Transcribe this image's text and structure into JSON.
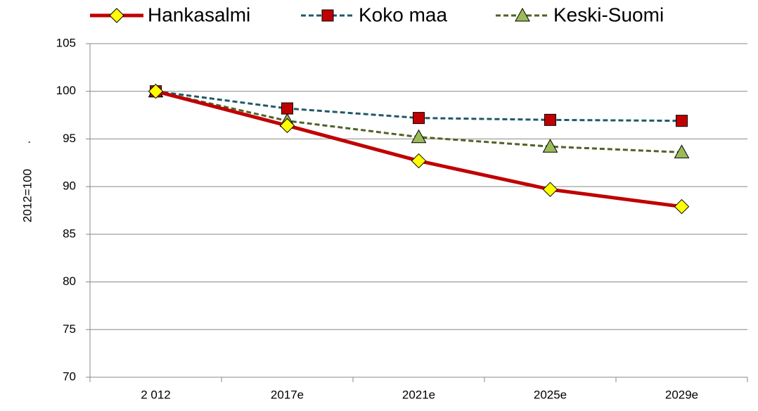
{
  "chart_data": {
    "type": "line",
    "categories": [
      "2 012",
      "2017e",
      "2021e",
      "2025e",
      "2029e"
    ],
    "series": [
      {
        "name": "Hankasalmi",
        "color": "#c00000",
        "marker": "diamond",
        "marker_color": "#ffff00",
        "dash": false,
        "values": [
          100,
          96.4,
          92.7,
          89.7,
          87.9
        ]
      },
      {
        "name": "Koko maa",
        "color": "#215968",
        "marker": "square",
        "marker_color": "#c00000",
        "dash": true,
        "values": [
          100,
          98.2,
          97.2,
          97.0,
          96.9
        ]
      },
      {
        "name": "Keski-Suomi",
        "color": "#4f6228",
        "marker": "triangle",
        "marker_color": "#9bbb59",
        "dash": true,
        "values": [
          100,
          96.9,
          95.2,
          94.2,
          93.6
        ]
      }
    ],
    "ylabel": "2012=100",
    "annotation": ".",
    "ylim": [
      70,
      105
    ],
    "yticks": [
      70,
      75,
      80,
      85,
      90,
      95,
      100,
      105
    ],
    "grid": true,
    "legend": "top"
  }
}
